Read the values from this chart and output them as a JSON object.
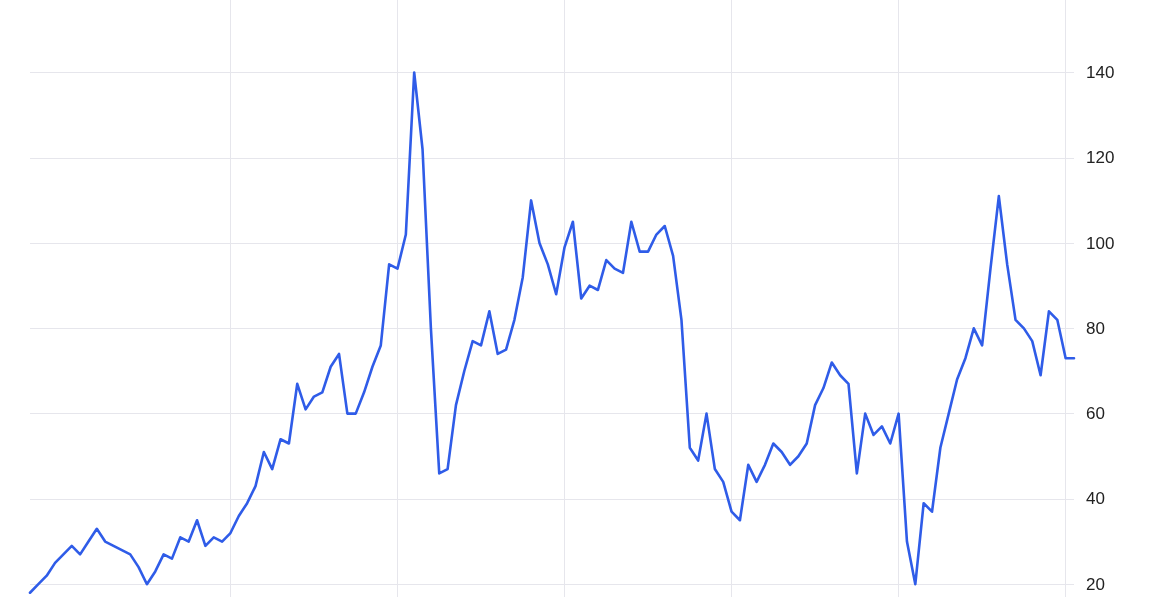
{
  "chart_data": {
    "type": "line",
    "categories": [
      null,
      null,
      null,
      null,
      null,
      null,
      null,
      null,
      null,
      null,
      null,
      null,
      null,
      null,
      null,
      null,
      null,
      null,
      null,
      null,
      null,
      null,
      null,
      null,
      null,
      null,
      null,
      null,
      null,
      null,
      null,
      null,
      null,
      null,
      null,
      null,
      null,
      null,
      null,
      null,
      null,
      null,
      null,
      null,
      null,
      null,
      null,
      null,
      null,
      null,
      null,
      null,
      null,
      null,
      null,
      null,
      null,
      null,
      null,
      null,
      null,
      null,
      null,
      null,
      null,
      null,
      null,
      null,
      null,
      null,
      null,
      null,
      null,
      null,
      null,
      null,
      null,
      null,
      null,
      null,
      null,
      null,
      null,
      null,
      null,
      null,
      null,
      null,
      null,
      null,
      null,
      null,
      null,
      null,
      null,
      null,
      null,
      null,
      null,
      null,
      null,
      null,
      null,
      null,
      null,
      null,
      null,
      null,
      null,
      null,
      null,
      null,
      null,
      null,
      null,
      null,
      null,
      null,
      null,
      null,
      null,
      null,
      null,
      null,
      null,
      null
    ],
    "series": [
      {
        "color": "#2f5ce8",
        "values": [
          18,
          20,
          22,
          25,
          27,
          29,
          27,
          30,
          33,
          30,
          29,
          28,
          27,
          24,
          20,
          23,
          27,
          26,
          31,
          30,
          35,
          29,
          31,
          30,
          32,
          36,
          39,
          43,
          51,
          47,
          54,
          53,
          67,
          61,
          64,
          65,
          71,
          74,
          60,
          60,
          65,
          71,
          76,
          95,
          94,
          102,
          140,
          122,
          80,
          46,
          47,
          62,
          70,
          77,
          76,
          84,
          74,
          75,
          82,
          92,
          110,
          100,
          95,
          88,
          99,
          105,
          87,
          90,
          89,
          96,
          94,
          93,
          105,
          98,
          98,
          102,
          104,
          97,
          82,
          52,
          49,
          60,
          47,
          44,
          37,
          35,
          48,
          44,
          48,
          53,
          51,
          48,
          50,
          53,
          62,
          66,
          72,
          69,
          67,
          46,
          60,
          55,
          57,
          53,
          60,
          30,
          20,
          39,
          37,
          52,
          60,
          68,
          73,
          80,
          76,
          94,
          111,
          95,
          82,
          80,
          77,
          69,
          84,
          82,
          73,
          73
        ]
      }
    ],
    "ylim": [
      17,
      157
    ],
    "yticks": [
      20,
      40,
      60,
      80,
      100,
      120,
      140
    ],
    "grid": true,
    "line_style": "solid",
    "tick_labels": "y"
  }
}
